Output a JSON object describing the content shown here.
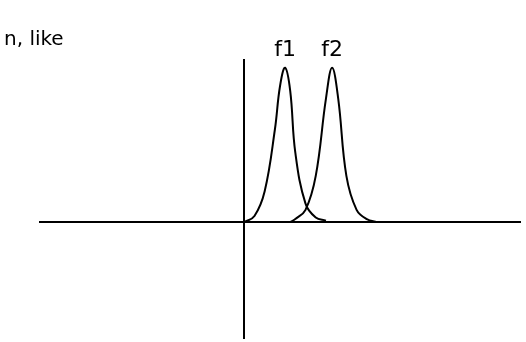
{
  "chart_data": {
    "type": "line",
    "annotation": "n, like",
    "x": [
      0,
      0.5,
      1,
      1.5,
      1.75,
      2,
      2.25,
      2.5,
      3,
      3.5,
      4,
      4.3,
      4.6,
      5,
      5.5,
      6,
      6.5
    ],
    "series": [
      {
        "name": "f1",
        "color": "#000000",
        "values": [
          0,
          0.04,
          0.2,
          0.6,
          0.88,
          1,
          0.85,
          0.45,
          0.12,
          0.03,
          0.01,
          null,
          null,
          null,
          null,
          null,
          null
        ]
      },
      {
        "name": "f2",
        "color": "#000000",
        "values": [
          null,
          null,
          null,
          null,
          null,
          null,
          0,
          0.02,
          0.08,
          0.3,
          0.8,
          1,
          0.8,
          0.3,
          0.08,
          0.02,
          0
        ]
      }
    ],
    "xlim": [
      -10,
      13.5
    ],
    "ylim": [
      -0.75,
      1.05
    ],
    "grid": false,
    "tick_labels": false
  }
}
